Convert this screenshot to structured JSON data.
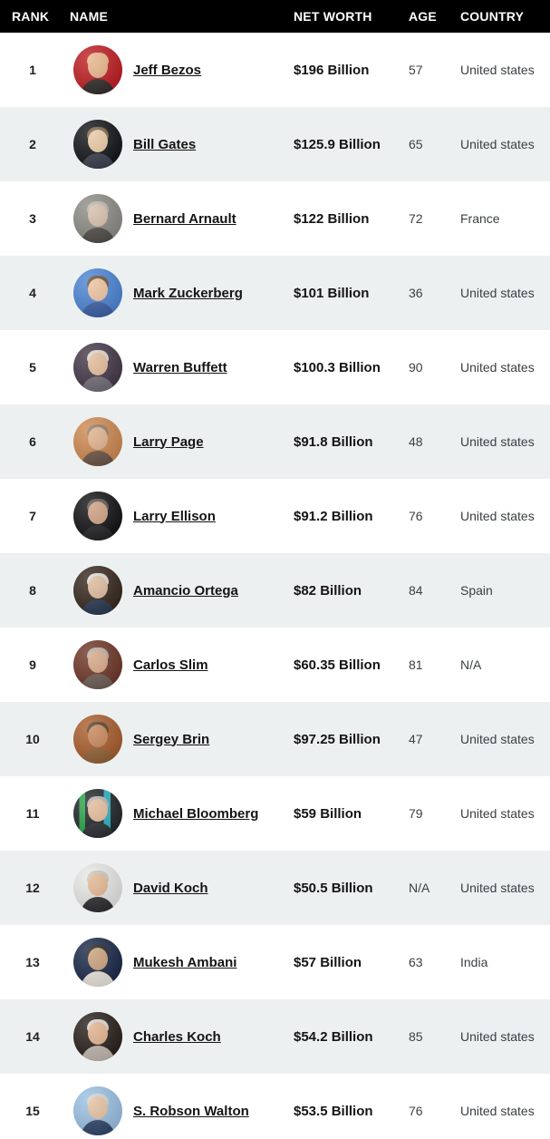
{
  "colors": {
    "header-bg": "#000000",
    "header-text": "#ffffff",
    "row-bg": "#ffffff",
    "row-alt-bg": "#edf0f0",
    "rank-text": "#202020",
    "name-text": "#141414",
    "value-text": "#141414",
    "muted-text": "#3c4043"
  },
  "table": {
    "columns": [
      {
        "key": "rank",
        "label": "RANK"
      },
      {
        "key": "name",
        "label": "NAME"
      },
      {
        "key": "net_worth",
        "label": "NET WORTH"
      },
      {
        "key": "age",
        "label": "AGE"
      },
      {
        "key": "country",
        "label": "COUNTRY"
      }
    ],
    "rows": [
      {
        "rank": "1",
        "name": "Jeff Bezos",
        "net_worth": "$196 Billion",
        "age": "57",
        "country": "United states",
        "avatar": {
          "bg": "#c01f24",
          "skin": "#e9b68c",
          "hair": "#e9b68c",
          "torso": "#33302e"
        }
      },
      {
        "rank": "2",
        "name": "Bill Gates",
        "net_worth": "$125.9 Billion",
        "age": "65",
        "country": "United states",
        "avatar": {
          "bg": "#14161a",
          "skin": "#eac9a4",
          "hair": "#7a6446",
          "torso": "#3c4250"
        }
      },
      {
        "rank": "3",
        "name": "Bernard Arnault",
        "net_worth": "$122 Billion",
        "age": "72",
        "country": "France",
        "avatar": {
          "bg": "#8f8d86",
          "skin": "#d9c0ab",
          "hair": "#b9b5ae",
          "torso": "#55504c"
        }
      },
      {
        "rank": "4",
        "name": "Mark Zuckerberg",
        "net_worth": "$101 Billion",
        "age": "36",
        "country": "United states",
        "avatar": {
          "bg": "#4e86d6",
          "skin": "#eec4a2",
          "hair": "#6d4f33",
          "torso": "#3f62a6"
        }
      },
      {
        "rank": "5",
        "name": "Warren Buffett",
        "net_worth": "$100.3 Billion",
        "age": "90",
        "country": "United states",
        "avatar": {
          "bg": "#463a4a",
          "skin": "#e5bd9b",
          "hair": "#d9d5cd",
          "torso": "#75707a"
        }
      },
      {
        "rank": "6",
        "name": "Larry Page",
        "net_worth": "$91.8 Billion",
        "age": "48",
        "country": "United states",
        "avatar": {
          "bg": "#d08a52",
          "skin": "#e0b28c",
          "hair": "#8e7c68",
          "torso": "#6e584a"
        }
      },
      {
        "rank": "7",
        "name": "Larry Ellison",
        "net_worth": "$91.2 Billion",
        "age": "76",
        "country": "United states",
        "avatar": {
          "bg": "#141417",
          "skin": "#cfa181",
          "hair": "#5a544e",
          "torso": "#26262a"
        }
      },
      {
        "rank": "8",
        "name": "Amancio Ortega",
        "net_worth": "$82 Billion",
        "age": "84",
        "country": "Spain",
        "avatar": {
          "bg": "#38291f",
          "skin": "#debb9d",
          "hair": "#dcdad5",
          "torso": "#2c3a52"
        }
      },
      {
        "rank": "9",
        "name": "Carlos Slim",
        "net_worth": "$60.35 Billion",
        "age": "81",
        "country": "N/A",
        "avatar": {
          "bg": "#70382a",
          "skin": "#d9a887",
          "hair": "#b4afa6",
          "torso": "#6f6158"
        }
      },
      {
        "rank": "10",
        "name": "Sergey Brin",
        "net_worth": "$97.25 Billion",
        "age": "47",
        "country": "United states",
        "avatar": {
          "bg": "#aa5f2f",
          "skin": "#c8875a",
          "hair": "#54402c",
          "torso": "#95643a"
        }
      },
      {
        "rank": "11",
        "name": "Michael Bloomberg",
        "net_worth": "$59 Billion",
        "age": "79",
        "country": "United states",
        "avatar": {
          "bg": "linear-gradient(90deg, #23282c 0 12%, #2aa84a 12% 24%, #23282c 24% 62%, #2bb3c4 62% 76%, #23282c 76%)",
          "skin": "#e6bd9c",
          "hair": "#b3b0ab",
          "torso": "#2e3338"
        }
      },
      {
        "rank": "12",
        "name": "David Koch",
        "net_worth": "$50.5 Billion",
        "age": "N/A",
        "country": "United states",
        "avatar": {
          "bg": "#e9e9e7",
          "skin": "#e5b892",
          "hair": "#c9c6c0",
          "torso": "#2f2f33"
        }
      },
      {
        "rank": "13",
        "name": "Mukesh Ambani",
        "net_worth": "$57 Billion",
        "age": "63",
        "country": "India",
        "avatar": {
          "bg": "#1c2a4a",
          "skin": "#c9a27c",
          "hair": "#26221f",
          "torso": "#ece7df"
        }
      },
      {
        "rank": "14",
        "name": "Charles Koch",
        "net_worth": "$54.2 Billion",
        "age": "85",
        "country": "United states",
        "avatar": {
          "bg": "#2a211c",
          "skin": "#e3b28e",
          "hair": "#d7d4ce",
          "torso": "#c3bab0"
        }
      },
      {
        "rank": "15",
        "name": "S. Robson Walton",
        "net_worth": "$53.5 Billion",
        "age": "76",
        "country": "United states",
        "avatar": {
          "bg": "#9cc2e5",
          "skin": "#e7c2a1",
          "hair": "#d3d3cf",
          "torso": "#32486b"
        }
      }
    ]
  }
}
